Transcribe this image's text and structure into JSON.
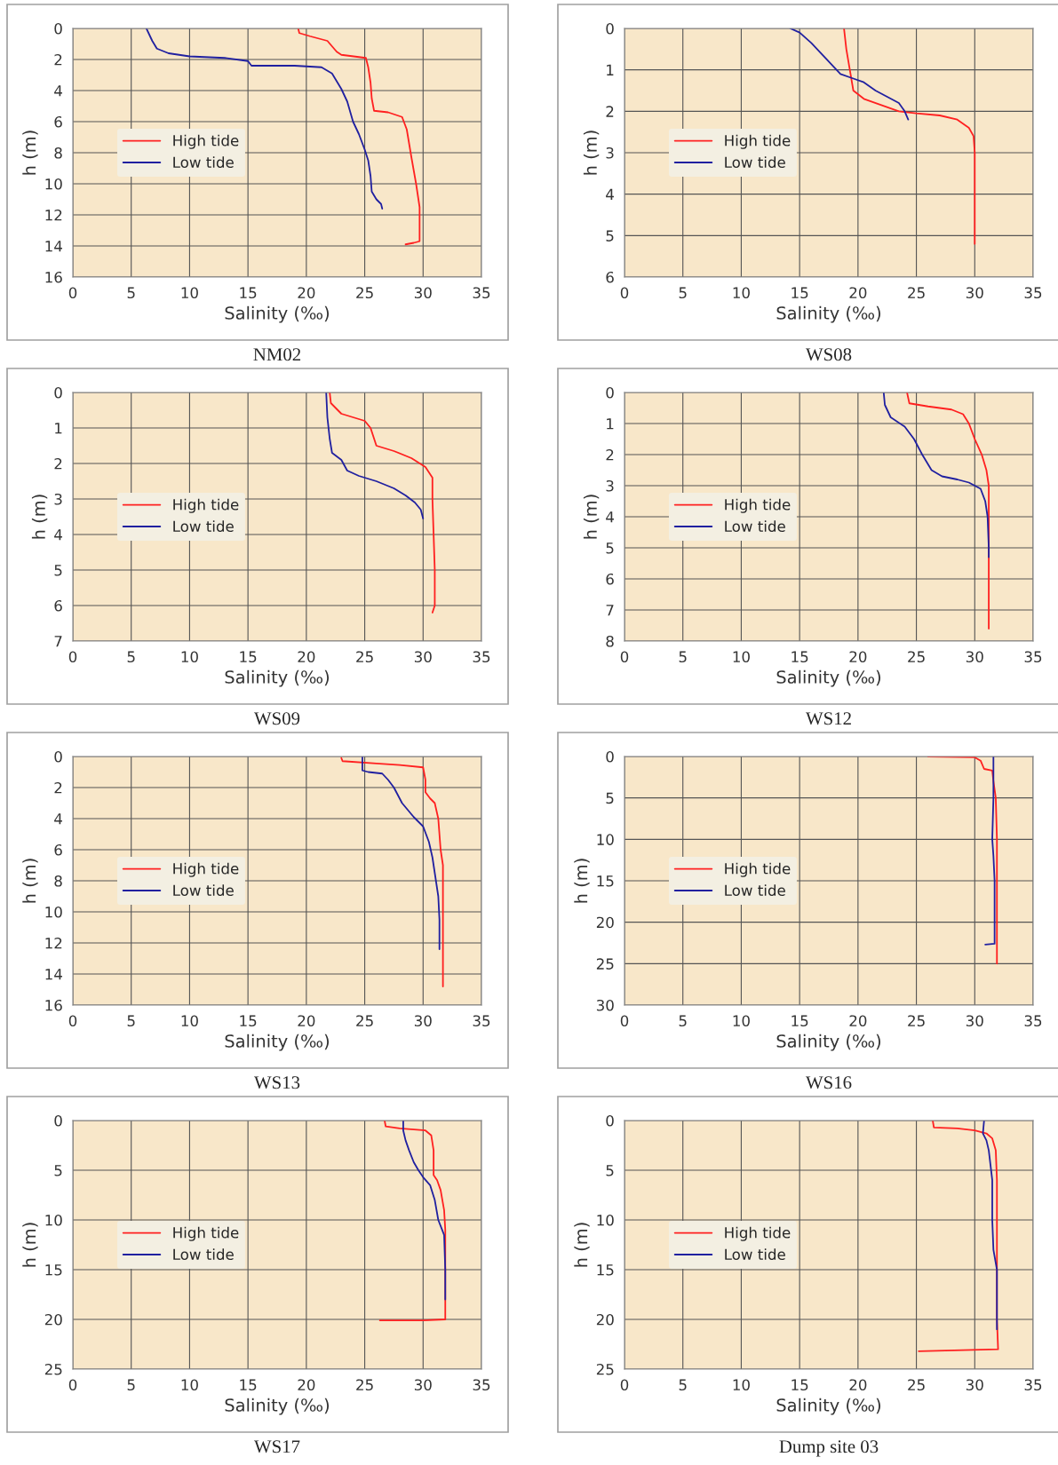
{
  "chart_data": [
    {
      "type": "line",
      "title": "NM02",
      "xlabel": "Salinity (‰)",
      "ylabel": "h (m)",
      "xlim": [
        0,
        35
      ],
      "xticks": [
        0,
        5,
        10,
        15,
        20,
        25,
        30,
        35
      ],
      "ylim": [
        16,
        0
      ],
      "yticks": [
        0,
        2,
        4,
        6,
        8,
        10,
        12,
        14,
        16
      ],
      "grid": true,
      "legend": "left",
      "series": [
        {
          "name": "High tide",
          "color": "#ff2020",
          "x": [
            19.3,
            19.4,
            20.3,
            21.8,
            22.6,
            23,
            25.1,
            25.3,
            25.5,
            25.6,
            25.8,
            27,
            28.2,
            28.6,
            29,
            29.4,
            29.7,
            29.7,
            29.2,
            28.5
          ],
          "values": [
            0,
            0.3,
            0.5,
            0.8,
            1.5,
            1.7,
            1.9,
            2.5,
            3.5,
            4.5,
            5.3,
            5.4,
            5.7,
            6.5,
            8.3,
            10,
            11.5,
            13.7,
            13.8,
            13.9
          ]
        },
        {
          "name": "Low tide",
          "color": "#2020a0",
          "x": [
            6.3,
            6.8,
            7.2,
            8.2,
            10,
            13,
            15,
            15.3,
            19,
            21.3,
            22.2,
            23,
            23.5,
            24,
            24.5,
            25,
            25.3,
            25.5,
            25.6,
            26,
            26.4,
            26.5
          ],
          "values": [
            0,
            0.8,
            1.3,
            1.6,
            1.8,
            1.9,
            2.1,
            2.4,
            2.4,
            2.5,
            2.9,
            3.9,
            4.7,
            6,
            6.8,
            7.8,
            8.5,
            9.5,
            10.5,
            11,
            11.3,
            11.6
          ]
        }
      ]
    },
    {
      "type": "line",
      "title": "WS08",
      "xlabel": "Salinity (‰)",
      "ylabel": "h (m)",
      "xlim": [
        0,
        35
      ],
      "xticks": [
        0,
        5,
        10,
        15,
        20,
        25,
        30,
        35
      ],
      "ylim": [
        6,
        0
      ],
      "yticks": [
        0,
        1,
        2,
        3,
        4,
        5,
        6
      ],
      "grid": true,
      "legend": "left",
      "series": [
        {
          "name": "High tide",
          "color": "#ff2020",
          "x": [
            18.8,
            19,
            19.3,
            19.6,
            20.5,
            22,
            23.5,
            25,
            27,
            28.5,
            29.5,
            29.9,
            30,
            30,
            30
          ],
          "values": [
            0,
            0.5,
            1,
            1.5,
            1.7,
            1.85,
            2,
            2.05,
            2.1,
            2.2,
            2.4,
            2.6,
            3,
            4,
            5.2
          ]
        },
        {
          "name": "Low tide",
          "color": "#2020a0",
          "x": [
            14.2,
            15,
            16,
            17,
            18.5,
            19.5,
            20.5,
            21.5,
            22.5,
            23.5,
            24,
            24.3
          ],
          "values": [
            0,
            0.1,
            0.35,
            0.65,
            1.1,
            1.2,
            1.3,
            1.5,
            1.65,
            1.8,
            2,
            2.2
          ]
        }
      ]
    },
    {
      "type": "line",
      "title": "WS09",
      "xlabel": "Salinity (‰)",
      "ylabel": "h (m)",
      "xlim": [
        0,
        35
      ],
      "xticks": [
        0,
        5,
        10,
        15,
        20,
        25,
        30,
        35
      ],
      "ylim": [
        7,
        0
      ],
      "yticks": [
        0,
        1,
        2,
        3,
        4,
        5,
        6,
        7
      ],
      "grid": true,
      "legend": "left",
      "series": [
        {
          "name": "High tide",
          "color": "#ff2020",
          "x": [
            22,
            22.1,
            23,
            25,
            25.5,
            26,
            27.5,
            29,
            30.2,
            30.8,
            30.8,
            30.9,
            31,
            31,
            30.8
          ],
          "values": [
            0,
            0.3,
            0.6,
            0.8,
            1,
            1.5,
            1.65,
            1.85,
            2.1,
            2.4,
            3,
            4,
            5,
            6,
            6.2
          ]
        },
        {
          "name": "Low tide",
          "color": "#2020a0",
          "x": [
            21.7,
            21.8,
            22,
            22.2,
            23,
            23.5,
            24.5,
            26,
            27.5,
            28.5,
            29.3,
            29.8,
            30
          ],
          "values": [
            0,
            0.7,
            1.3,
            1.7,
            1.9,
            2.2,
            2.35,
            2.5,
            2.7,
            2.9,
            3.1,
            3.3,
            3.55
          ]
        }
      ]
    },
    {
      "type": "line",
      "title": "WS12",
      "xlabel": "Salinity (‰)",
      "ylabel": "h (m)",
      "xlim": [
        0,
        35
      ],
      "xticks": [
        0,
        5,
        10,
        15,
        20,
        25,
        30,
        35
      ],
      "ylim": [
        8,
        0
      ],
      "yticks": [
        0,
        1,
        2,
        3,
        4,
        5,
        6,
        7,
        8
      ],
      "grid": true,
      "legend": "left",
      "series": [
        {
          "name": "High tide",
          "color": "#ff2020",
          "x": [
            24.2,
            24.4,
            26,
            28,
            29,
            29.5,
            30,
            30.6,
            31,
            31.2,
            31.2
          ],
          "values": [
            0,
            0.35,
            0.45,
            0.55,
            0.7,
            1,
            1.5,
            2,
            2.5,
            3,
            7.6
          ]
        },
        {
          "name": "Low tide",
          "color": "#2020a0",
          "x": [
            22.2,
            22.3,
            22.8,
            24,
            24.8,
            25.5,
            26.3,
            27.2,
            28.5,
            29.5,
            30.5,
            30.9,
            31.1,
            31.2,
            31.2
          ],
          "values": [
            0,
            0.4,
            0.8,
            1.1,
            1.5,
            2,
            2.5,
            2.7,
            2.8,
            2.9,
            3.1,
            3.5,
            4,
            5,
            5.3
          ]
        }
      ]
    },
    {
      "type": "line",
      "title": "WS13",
      "xlabel": "Salinity (‰)",
      "ylabel": "h (m)",
      "xlim": [
        0,
        35
      ],
      "xticks": [
        0,
        5,
        10,
        15,
        20,
        25,
        30,
        35
      ],
      "ylim": [
        16,
        0
      ],
      "yticks": [
        0,
        2,
        4,
        6,
        8,
        10,
        12,
        14,
        16
      ],
      "grid": true,
      "legend": "left",
      "series": [
        {
          "name": "High tide",
          "color": "#ff2020",
          "x": [
            23,
            23.1,
            26,
            28,
            30,
            30.2,
            30.2,
            30.6,
            31,
            31.3,
            31.5,
            31.7,
            31.7,
            31.7
          ],
          "values": [
            0.1,
            0.3,
            0.45,
            0.55,
            0.7,
            1.5,
            2.3,
            2.7,
            3,
            4,
            6,
            7,
            10,
            14.8
          ]
        },
        {
          "name": "Low tide",
          "color": "#2020a0",
          "x": [
            24.8,
            24.8,
            25.3,
            26.5,
            27,
            27.5,
            28.2,
            29.2,
            30,
            30.5,
            30.8,
            31,
            31.3,
            31.4,
            31.4
          ],
          "values": [
            0,
            0.9,
            1,
            1.1,
            1.5,
            2,
            3,
            3.9,
            4.5,
            5.5,
            6.5,
            7.5,
            9,
            10.5,
            12.4
          ]
        }
      ]
    },
    {
      "type": "line",
      "title": "WS16",
      "xlabel": "Salinity (‰)",
      "ylabel": "h (m)",
      "xlim": [
        0,
        35
      ],
      "xticks": [
        0,
        5,
        10,
        15,
        20,
        25,
        30,
        35
      ],
      "ylim": [
        30,
        0
      ],
      "yticks": [
        0,
        5,
        10,
        15,
        20,
        25,
        30
      ],
      "grid": true,
      "legend": "left",
      "series": [
        {
          "name": "High tide",
          "color": "#ff2020",
          "x": [
            26,
            30,
            30.5,
            30.8,
            31.5,
            31.6,
            31.8,
            31.9,
            31.9,
            31.9,
            31.9
          ],
          "values": [
            0,
            0.1,
            0.5,
            1.5,
            1.7,
            3,
            5,
            10,
            15,
            20,
            25
          ]
        },
        {
          "name": "Low tide",
          "color": "#2020a0",
          "x": [
            31.6,
            31.6,
            31.5,
            31.6,
            31.7,
            31.7,
            31.7,
            30.9
          ],
          "values": [
            0,
            5,
            10,
            12,
            15,
            20,
            22.6,
            22.7
          ]
        }
      ]
    },
    {
      "type": "line",
      "title": "WS17",
      "xlabel": "Salinity (‰)",
      "ylabel": "h (m)",
      "xlim": [
        0,
        35
      ],
      "xticks": [
        0,
        5,
        10,
        15,
        20,
        25,
        30,
        35
      ],
      "ylim": [
        25,
        0
      ],
      "yticks": [
        0,
        5,
        10,
        15,
        20,
        25
      ],
      "grid": true,
      "legend": "left",
      "series": [
        {
          "name": "High tide",
          "color": "#ff2020",
          "x": [
            26.7,
            26.8,
            28,
            30.2,
            30.7,
            30.9,
            30.9,
            31.2,
            31.5,
            31.8,
            31.9,
            31.9,
            31.9,
            30,
            26.3
          ],
          "values": [
            0,
            0.6,
            0.8,
            1,
            1.5,
            3,
            5.5,
            6,
            7,
            9,
            11,
            15,
            20,
            20.1,
            20.1
          ]
        },
        {
          "name": "Low tide",
          "color": "#2020a0",
          "x": [
            28.3,
            28.3,
            28.5,
            28.8,
            29.2,
            29.6,
            30,
            30.6,
            31,
            31.3,
            31.8,
            31.9,
            31.9
          ],
          "values": [
            0,
            1,
            2,
            3,
            4.2,
            5,
            5.7,
            6.5,
            8,
            10,
            11.5,
            15,
            18
          ]
        }
      ]
    },
    {
      "type": "line",
      "title": "Dump site 03",
      "xlabel": "Salinity (‰)",
      "ylabel": "h (m)",
      "xlim": [
        0,
        35
      ],
      "xticks": [
        0,
        5,
        10,
        15,
        20,
        25,
        30,
        35
      ],
      "ylim": [
        25,
        0
      ],
      "yticks": [
        0,
        5,
        10,
        15,
        20,
        25
      ],
      "grid": true,
      "legend": "left",
      "series": [
        {
          "name": "High tide",
          "color": "#ff2020",
          "x": [
            26.4,
            26.5,
            28.5,
            30,
            31,
            31.5,
            31.8,
            31.9,
            31.9,
            31.9,
            31.9,
            32,
            29,
            25.2
          ],
          "values": [
            0,
            0.7,
            0.8,
            1,
            1.3,
            1.8,
            3,
            6,
            10,
            15,
            20,
            23,
            23.1,
            23.2
          ]
        },
        {
          "name": "Low tide",
          "color": "#2020a0",
          "x": [
            30.8,
            30.7,
            31,
            31.2,
            31.5,
            31.5,
            31.6,
            31.9,
            31.9,
            31.9
          ],
          "values": [
            0,
            1.3,
            2,
            3,
            6,
            10,
            13,
            15,
            20,
            21
          ]
        }
      ]
    }
  ]
}
